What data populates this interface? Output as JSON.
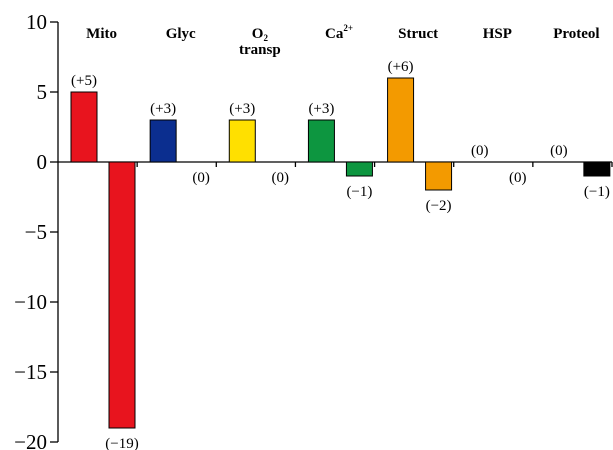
{
  "chart_data": {
    "type": "bar",
    "title": "",
    "xlabel": "",
    "ylabel": "",
    "ylim": [
      -20,
      10
    ],
    "yticks": [
      10,
      5,
      0,
      -5,
      -10,
      -15,
      -20
    ],
    "categories": [
      {
        "label": "Mito",
        "sub": "",
        "sup": ""
      },
      {
        "label": "Glyc",
        "sub": "",
        "sup": ""
      },
      {
        "label": "O",
        "sub": "2",
        "sup": "",
        "line2": "transp"
      },
      {
        "label": "Ca",
        "sub": "",
        "sup": "2+"
      },
      {
        "label": "Struct",
        "sub": "",
        "sup": ""
      },
      {
        "label": "HSP",
        "sub": "",
        "sup": ""
      },
      {
        "label": "Proteol",
        "sub": "",
        "sup": ""
      }
    ],
    "series": [
      {
        "values": [
          5,
          3,
          3,
          3,
          6,
          0,
          0
        ],
        "labels": [
          "(+5)",
          "(+3)",
          "(+3)",
          "(+3)",
          "(+6)",
          "(0)",
          "(0)"
        ]
      },
      {
        "values": [
          -19,
          0,
          0,
          -1,
          -2,
          0,
          -1
        ],
        "labels": [
          "(−19)",
          "(0)",
          "(0)",
          "(−1)",
          "(−2)",
          "(0)",
          "(−1)"
        ]
      }
    ],
    "colors": [
      "#e8141e",
      "#0b2e8f",
      "#ffe000",
      "#0d9640",
      "#f39a00",
      "#ffffff",
      "#000000"
    ],
    "legend": "none",
    "grid": false
  }
}
